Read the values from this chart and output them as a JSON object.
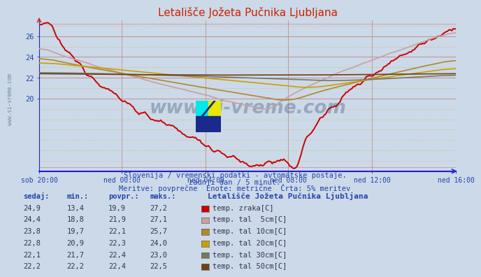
{
  "title": "Letališče Jožeta Pučnika Ljubljana",
  "background_color": "#ccd9e8",
  "plot_bg_color": "#ccd9e8",
  "x_labels": [
    "sob 20:00",
    "ned 00:00",
    "ned 04:00",
    "ned 08:00",
    "ned 12:00",
    "ned 16:00"
  ],
  "x_ticks_norm": [
    0.0,
    0.2,
    0.4,
    0.6,
    0.8,
    1.0
  ],
  "total_points": 289,
  "y_min": 13.0,
  "y_max": 27.5,
  "y_ticks": [
    20,
    22,
    24,
    26
  ],
  "subtitle1": "Slovenija / vremenski podatki - avtomatske postaje.",
  "subtitle2": "zadnji dan / 5 minut.",
  "subtitle3": "Meritve: povprečne  Enote: metrične  Črta: 5% meritev",
  "table_headers": [
    "sedaj:",
    "min.:",
    "povpr.:",
    "maks.:"
  ],
  "table_data": [
    [
      "24,9",
      "13,4",
      "19,9",
      "27,2"
    ],
    [
      "24,4",
      "18,8",
      "21,9",
      "27,1"
    ],
    [
      "23,8",
      "19,7",
      "22,1",
      "25,7"
    ],
    [
      "22,8",
      "20,9",
      "22,3",
      "24,0"
    ],
    [
      "22,1",
      "21,7",
      "22,4",
      "23,0"
    ],
    [
      "22,2",
      "22,2",
      "22,4",
      "22,5"
    ]
  ],
  "legend_labels": [
    "temp. zraka[C]",
    "temp. tal  5cm[C]",
    "temp. tal 10cm[C]",
    "temp. tal 20cm[C]",
    "temp. tal 30cm[C]",
    "temp. tal 50cm[C]"
  ],
  "legend_colors": [
    "#cc0000",
    "#c8a0a0",
    "#b08828",
    "#c8a000",
    "#787860",
    "#704010"
  ],
  "series_colors": [
    "#cc0000",
    "#c8a0a0",
    "#b08828",
    "#c8a000",
    "#787860",
    "#704010"
  ],
  "watermark_text": "www.si-vreme.com",
  "watermark_color": "#1a3a6a",
  "watermark_alpha": 0.3,
  "axis_color": "#2222cc",
  "tick_color": "#2244aa",
  "title_color": "#cc2200"
}
